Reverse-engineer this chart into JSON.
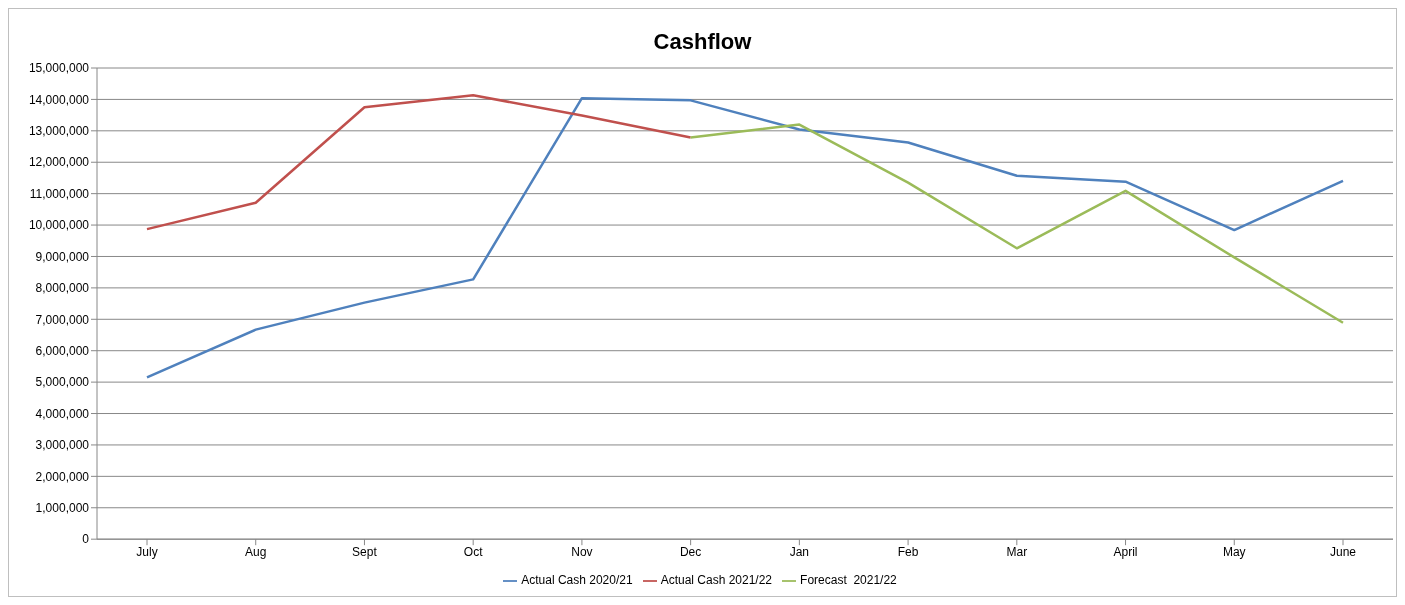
{
  "chart_data": {
    "type": "line",
    "title": "Cashflow",
    "categories": [
      "July",
      "Aug",
      "Sept",
      "Oct",
      "Nov",
      "Dec",
      "Jan",
      "Feb",
      "Mar",
      "April",
      "May",
      "June"
    ],
    "series": [
      {
        "name": "Actual Cash 2020/21",
        "color": "#4f81bd",
        "values": [
          5150000,
          6670000,
          7530000,
          8270000,
          14040000,
          13970000,
          13040000,
          12630000,
          11570000,
          11380000,
          9840000,
          11410000
        ]
      },
      {
        "name": "Actual Cash 2021/22",
        "color": "#c0504d",
        "values": [
          9870000,
          10710000,
          13750000,
          14130000,
          13490000,
          12790000,
          null,
          null,
          null,
          null,
          null,
          null
        ]
      },
      {
        "name": "Forecast  2021/22",
        "color": "#9bbb59",
        "values": [
          null,
          null,
          null,
          null,
          null,
          12790000,
          13200000,
          11350000,
          9260000,
          11090000,
          8970000,
          6890000
        ]
      }
    ],
    "ylim": [
      0,
      15000000
    ],
    "yticks": [
      0,
      {
        "value": 1000000,
        "label": "1,000,000"
      },
      {
        "value": 2000000,
        "label": "2,000,000"
      },
      {
        "value": 3000000,
        "label": "3,000,000"
      },
      {
        "value": 4000000,
        "label": "4,000,000"
      },
      {
        "value": 5000000,
        "label": "5,000,000"
      },
      {
        "value": 6000000,
        "label": "6,000,000"
      },
      {
        "value": 7000000,
        "label": "7,000,000"
      },
      {
        "value": 8000000,
        "label": "8,000,000"
      },
      {
        "value": 9000000,
        "label": "9,000,000"
      },
      {
        "value": 10000000,
        "label": "10,000,000"
      },
      {
        "value": 11000000,
        "label": "11,000,000"
      },
      {
        "value": 12000000,
        "label": "12,000,000"
      },
      {
        "value": 13000000,
        "label": "13,000,000"
      },
      {
        "value": 14000000,
        "label": "14,000,000"
      },
      {
        "value": 15000000,
        "label": "15,000,000"
      }
    ],
    "grid": "y",
    "legend": "bottom",
    "marker": "none",
    "line_style": "solid"
  }
}
